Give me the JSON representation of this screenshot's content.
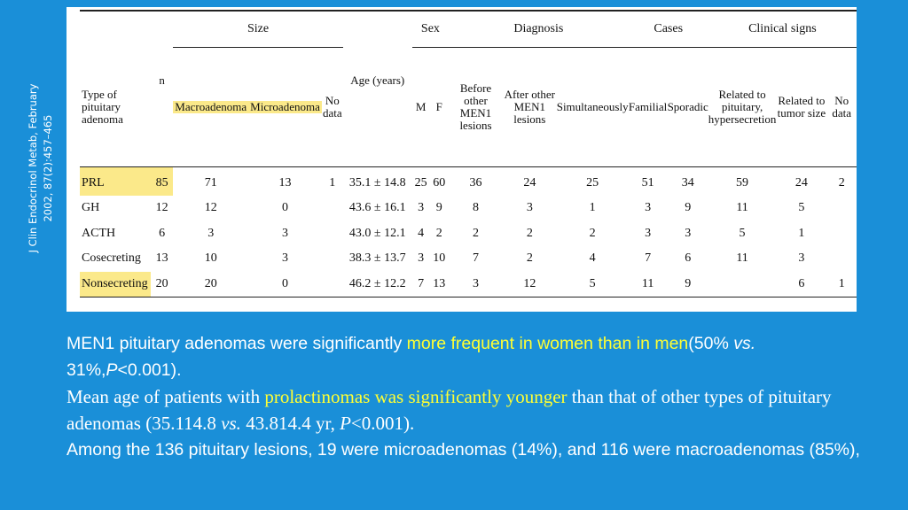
{
  "citation": {
    "line1": "J Clin Endocrinol Metab, February",
    "line2": "2002, 87(2):457–465"
  },
  "table": {
    "groups": {
      "size": "Size",
      "sex": "Sex",
      "diagnosis": "Diagnosis",
      "cases": "Cases",
      "clinical": "Clinical signs"
    },
    "headers": {
      "type": "Type of pituitary adenoma",
      "n": "n",
      "macro": "Macroadenoma",
      "micro": "Microadenoma",
      "nodata_size": "No data",
      "age": "Age (years)",
      "m": "M",
      "f": "F",
      "before": "Before other MEN1 lesions",
      "after": "After other MEN1 lesions",
      "simul": "Simultaneously",
      "familial": "Familial",
      "sporadic": "Sporadic",
      "pit": "Related to pituitary, hypersecretion",
      "tumor": "Related to tumor size",
      "nodata_clin": "No data"
    },
    "rows": [
      {
        "type": "PRL",
        "n": "85",
        "macro": "71",
        "micro": "13",
        "nodata_size": "1",
        "age": "35.1 ± 14.8",
        "m": "25",
        "f": "60",
        "before": "36",
        "after": "24",
        "simul": "25",
        "familial": "51",
        "sporadic": "34",
        "pit": "59",
        "tumor": "24",
        "nodata_clin": "2"
      },
      {
        "type": "GH",
        "n": "12",
        "macro": "12",
        "micro": "0",
        "nodata_size": "",
        "age": "43.6 ± 16.1",
        "m": "3",
        "f": "9",
        "before": "8",
        "after": "3",
        "simul": "1",
        "familial": "3",
        "sporadic": "9",
        "pit": "11",
        "tumor": "5",
        "nodata_clin": ""
      },
      {
        "type": "ACTH",
        "n": "6",
        "macro": "3",
        "micro": "3",
        "nodata_size": "",
        "age": "43.0 ± 12.1",
        "m": "4",
        "f": "2",
        "before": "2",
        "after": "2",
        "simul": "2",
        "familial": "3",
        "sporadic": "3",
        "pit": "5",
        "tumor": "1",
        "nodata_clin": ""
      },
      {
        "type": "Cosecreting",
        "n": "13",
        "macro": "10",
        "micro": "3",
        "nodata_size": "",
        "age": "38.3 ± 13.7",
        "m": "3",
        "f": "10",
        "before": "7",
        "after": "2",
        "simul": "4",
        "familial": "7",
        "sporadic": "6",
        "pit": "11",
        "tumor": "3",
        "nodata_clin": ""
      },
      {
        "type": "Nonsecreting",
        "n": "20",
        "macro": "20",
        "micro": "0",
        "nodata_size": "",
        "age": "46.2 ± 12.2",
        "m": "7",
        "f": "13",
        "before": "3",
        "after": "12",
        "simul": "5",
        "familial": "11",
        "sporadic": "9",
        "pit": "",
        "tumor": "6",
        "nodata_clin": "1"
      }
    ]
  },
  "caption": {
    "line1_a": "MEN1 pituitary adenomas were significantly ",
    "line1_hl": "more frequent in women than in men",
    "line1_b": "(50% ",
    "line1_vs": "vs.",
    "line1_c": " 31%,",
    "line1_p": "P",
    "line1_d": "<0.001).",
    "line2_a": "Mean age of patients with ",
    "line2_hl": "prolactinomas was significantly younger",
    "line2_b": " than that of other types of pituitary adenomas (35.114.8 ",
    "line2_vs": "vs.",
    "line2_c": " 43.814.4 yr, ",
    "line2_p": "P",
    "line2_d": "<0.001).",
    "line3": "Among the 136 pituitary lesions, 19 were microadenomas (14%), and 116 were macroadenomas (85%),"
  },
  "colors": {
    "background": "#1a8fd8",
    "highlight": "#fbe98a",
    "caption_highlight": "#ffff33"
  }
}
